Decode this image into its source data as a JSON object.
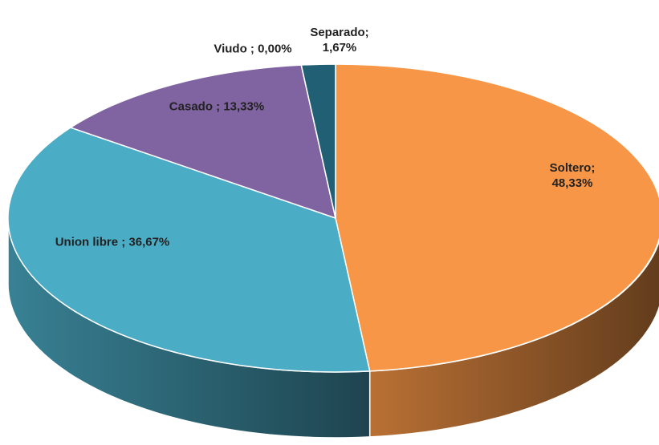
{
  "chart_data": {
    "type": "pie3d",
    "categories": [
      "Soltero",
      "Union libre",
      "Casado",
      "Viudo",
      "Separado"
    ],
    "values": [
      48.33,
      36.67,
      13.33,
      0.0,
      1.67
    ],
    "value_labels": [
      "Soltero; 48,33%",
      "Union libre ; 36,67%",
      "Casado ; 13,33%",
      "Viudo ; 0,00%",
      "Separado;\n1,67%"
    ],
    "colors": [
      "#f79646",
      "#4bacc6",
      "#8064a2",
      "#9bbb59",
      "#215f74"
    ]
  }
}
